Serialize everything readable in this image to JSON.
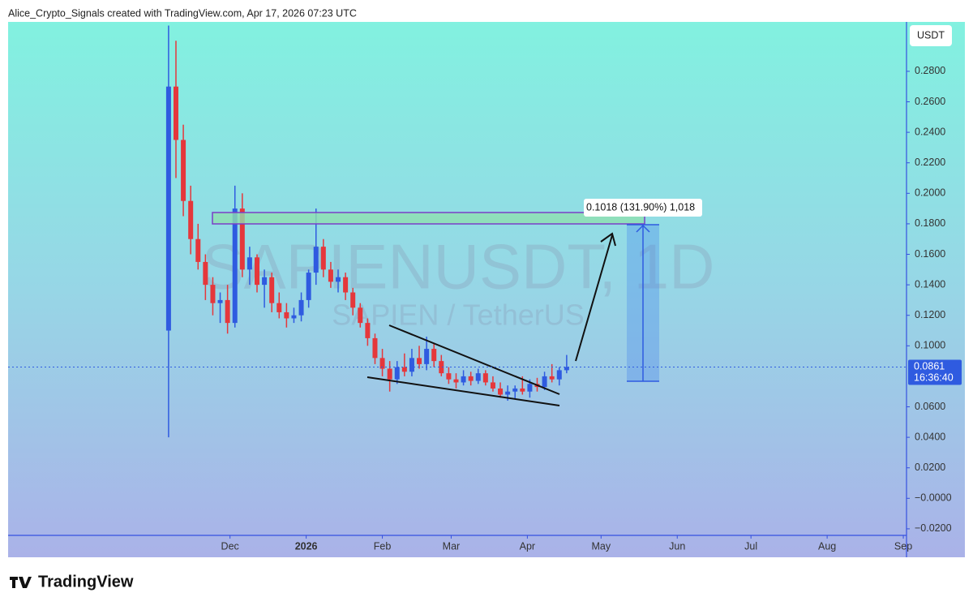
{
  "header": "Alice_Crypto_Signals created with TradingView.com, Apr 17, 2026 07:23 UTC",
  "footer": "TradingView",
  "chart_data": {
    "type": "candlestick",
    "watermark": "SAPIENUSDT, 1D",
    "watermark_sub": "SAPIEN / TetherUS",
    "currency": "USDT",
    "measure_label": "0.1018 (131.90%) 1,018",
    "last_price": 0.0861,
    "countdown": "16:36:40",
    "up_color": "#2f5be0",
    "down_color": "#e5373b",
    "x": [
      0,
      3,
      6,
      9,
      12,
      15,
      18,
      21,
      24,
      27,
      30,
      33,
      36,
      39,
      42,
      45,
      48,
      51,
      54,
      57,
      60,
      63,
      66,
      69,
      72,
      75,
      78,
      81,
      84,
      87,
      90,
      93,
      96,
      99,
      102,
      105,
      108,
      111,
      114,
      117,
      120,
      123,
      126,
      129,
      132,
      135,
      138,
      141,
      144,
      147,
      150,
      153,
      156,
      159,
      162
    ],
    "open": [
      0.11,
      0.27,
      0.235,
      0.195,
      0.17,
      0.155,
      0.14,
      0.128,
      0.13,
      0.115,
      0.19,
      0.15,
      0.158,
      0.14,
      0.145,
      0.128,
      0.122,
      0.118,
      0.12,
      0.13,
      0.148,
      0.165,
      0.15,
      0.142,
      0.145,
      0.135,
      0.125,
      0.115,
      0.105,
      0.092,
      0.085,
      0.078,
      0.086,
      0.083,
      0.092,
      0.088,
      0.098,
      0.09,
      0.082,
      0.078,
      0.076,
      0.08,
      0.077,
      0.082,
      0.076,
      0.072,
      0.068,
      0.07,
      0.072,
      0.07,
      0.075,
      0.073,
      0.08,
      0.078,
      0.084
    ],
    "high": [
      0.31,
      0.3,
      0.245,
      0.205,
      0.18,
      0.16,
      0.145,
      0.135,
      0.14,
      0.205,
      0.2,
      0.165,
      0.16,
      0.15,
      0.148,
      0.135,
      0.128,
      0.125,
      0.135,
      0.15,
      0.19,
      0.17,
      0.155,
      0.15,
      0.148,
      0.138,
      0.128,
      0.118,
      0.108,
      0.098,
      0.09,
      0.09,
      0.095,
      0.098,
      0.1,
      0.106,
      0.102,
      0.094,
      0.086,
      0.082,
      0.084,
      0.083,
      0.085,
      0.084,
      0.08,
      0.076,
      0.074,
      0.074,
      0.08,
      0.078,
      0.079,
      0.083,
      0.088,
      0.086,
      0.094
    ],
    "low": [
      0.04,
      0.21,
      0.185,
      0.16,
      0.15,
      0.13,
      0.12,
      0.115,
      0.108,
      0.112,
      0.145,
      0.14,
      0.135,
      0.125,
      0.122,
      0.118,
      0.112,
      0.115,
      0.116,
      0.125,
      0.14,
      0.145,
      0.138,
      0.135,
      0.13,
      0.12,
      0.112,
      0.1,
      0.088,
      0.08,
      0.07,
      0.075,
      0.08,
      0.08,
      0.085,
      0.084,
      0.086,
      0.08,
      0.075,
      0.072,
      0.074,
      0.074,
      0.075,
      0.074,
      0.07,
      0.066,
      0.064,
      0.065,
      0.068,
      0.066,
      0.07,
      0.071,
      0.076,
      0.074,
      0.082
    ],
    "close": [
      0.27,
      0.235,
      0.195,
      0.17,
      0.155,
      0.14,
      0.128,
      0.13,
      0.115,
      0.19,
      0.15,
      0.158,
      0.14,
      0.145,
      0.128,
      0.122,
      0.118,
      0.12,
      0.13,
      0.148,
      0.165,
      0.15,
      0.142,
      0.145,
      0.135,
      0.125,
      0.115,
      0.105,
      0.092,
      0.085,
      0.078,
      0.086,
      0.083,
      0.092,
      0.088,
      0.098,
      0.09,
      0.082,
      0.078,
      0.076,
      0.08,
      0.077,
      0.082,
      0.076,
      0.072,
      0.068,
      0.07,
      0.072,
      0.07,
      0.075,
      0.073,
      0.08,
      0.078,
      0.084,
      0.0861
    ],
    "xlim": [
      -65.3,
      300.3
    ],
    "ylim": [
      -0.0243,
      0.3124
    ],
    "xticks": [
      {
        "value": 25,
        "label": "Dec"
      },
      {
        "value": 56,
        "label": "2026"
      },
      {
        "value": 87,
        "label": "Feb"
      },
      {
        "value": 115,
        "label": "Mar"
      },
      {
        "value": 146,
        "label": "Apr"
      },
      {
        "value": 176,
        "label": "May"
      },
      {
        "value": 207,
        "label": "Jun"
      },
      {
        "value": 237,
        "label": "Jul"
      },
      {
        "value": 268,
        "label": "Aug"
      },
      {
        "value": 299,
        "label": "Sep"
      }
    ],
    "yticks": [
      {
        "value": 0.28,
        "label": "0.2800"
      },
      {
        "value": 0.26,
        "label": "0.2600"
      },
      {
        "value": 0.24,
        "label": "0.2400"
      },
      {
        "value": 0.22,
        "label": "0.2200"
      },
      {
        "value": 0.2,
        "label": "0.2000"
      },
      {
        "value": 0.18,
        "label": "0.1800"
      },
      {
        "value": 0.16,
        "label": "0.1600"
      },
      {
        "value": 0.14,
        "label": "0.1400"
      },
      {
        "value": 0.12,
        "label": "0.1200"
      },
      {
        "value": 0.1,
        "label": "0.1000"
      },
      {
        "value": 0.06,
        "label": "0.0600"
      },
      {
        "value": 0.04,
        "label": "0.0400"
      },
      {
        "value": 0.02,
        "label": "0.0200"
      },
      {
        "value": 0,
        "label": "−0.0000"
      },
      {
        "value": -0.02,
        "label": "−0.0200"
      }
    ]
  }
}
